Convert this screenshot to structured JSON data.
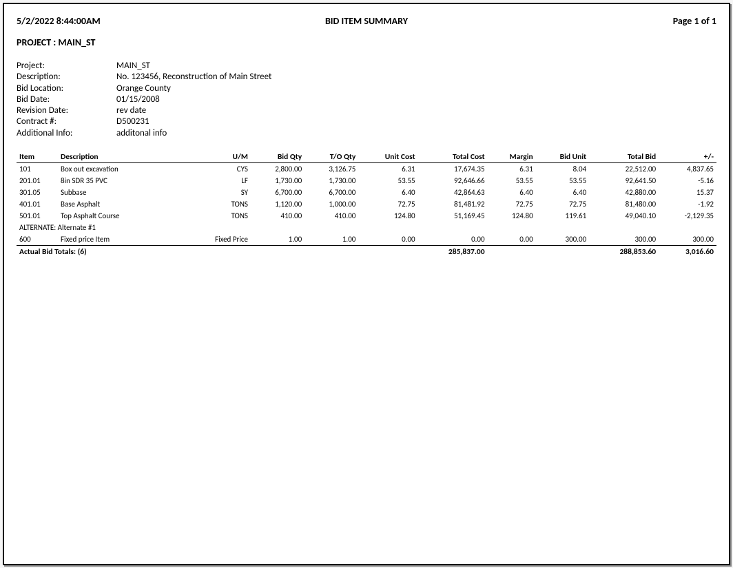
{
  "header": {
    "timestamp": "5/2/2022  8:44:00AM",
    "title": "BID ITEM SUMMARY",
    "page": "Page 1 of 1"
  },
  "project_line": "PROJECT : MAIN_ST",
  "meta": {
    "project_label": "Project:",
    "project_value": "MAIN_ST",
    "description_label": "Description:",
    "description_value": "No. 123456, Reconstruction of Main Street",
    "bidlocation_label": "Bid Location:",
    "bidlocation_value": "Orange County",
    "biddate_label": "Bid Date:",
    "biddate_value": "01/15/2008",
    "revisiondate_label": "Revision Date:",
    "revisiondate_value": "rev date",
    "contract_label": "Contract #:",
    "contract_value": "D500231",
    "addinfo_label": "Additional Info:",
    "addinfo_value": "additonal info"
  },
  "columns": {
    "item": "Item",
    "description": "Description",
    "um": "U/M",
    "bidqty": "Bid Qty",
    "toqty": "T/O Qty",
    "unitcost": "Unit Cost",
    "totalcost": "Total Cost",
    "margin": "Margin",
    "bidunit": "Bid Unit",
    "totalbid": "Total Bid",
    "plusminus": "+/-"
  },
  "rows": [
    {
      "item": "101",
      "description": "Box out excavation",
      "um": "CYS",
      "bidqty": "2,800.00",
      "toqty": "3,126.75",
      "unitcost": "6.31",
      "totalcost": "17,674.35",
      "margin": "6.31",
      "bidunit": "8.04",
      "totalbid": "22,512.00",
      "plusminus": "4,837.65"
    },
    {
      "item": "201.01",
      "description": "8in SDR 35 PVC",
      "um": "LF",
      "bidqty": "1,730.00",
      "toqty": "1,730.00",
      "unitcost": "53.55",
      "totalcost": "92,646.66",
      "margin": "53.55",
      "bidunit": "53.55",
      "totalbid": "92,641.50",
      "plusminus": "-5.16"
    },
    {
      "item": "301.05",
      "description": "Subbase",
      "um": "SY",
      "bidqty": "6,700.00",
      "toqty": "6,700.00",
      "unitcost": "6.40",
      "totalcost": "42,864.63",
      "margin": "6.40",
      "bidunit": "6.40",
      "totalbid": "42,880.00",
      "plusminus": "15.37"
    },
    {
      "item": "401.01",
      "description": "Base Asphalt",
      "um": "TONS",
      "bidqty": "1,120.00",
      "toqty": "1,000.00",
      "unitcost": "72.75",
      "totalcost": "81,481.92",
      "margin": "72.75",
      "bidunit": "72.75",
      "totalbid": "81,480.00",
      "plusminus": "-1.92"
    },
    {
      "item": "501.01",
      "description": "Top Asphalt Course",
      "um": "TONS",
      "bidqty": "410.00",
      "toqty": "410.00",
      "unitcost": "124.80",
      "totalcost": "51,169.45",
      "margin": "124.80",
      "bidunit": "119.61",
      "totalbid": "49,040.10",
      "plusminus": "-2,129.35"
    }
  ],
  "alternate_label": "ALTERNATE: Alternate #1",
  "alternate_row": {
    "item": "600",
    "description": "Fixed price Item",
    "um": "Fixed Price",
    "bidqty": "1.00",
    "toqty": "1.00",
    "unitcost": "0.00",
    "totalcost": "0.00",
    "margin": "0.00",
    "bidunit": "300.00",
    "totalbid": "300.00",
    "plusminus": "300.00"
  },
  "totals": {
    "label": "Actual Bid Totals: (6)",
    "totalcost": "285,837.00",
    "totalbid": "288,853.60",
    "plusminus": "3,016.60"
  }
}
